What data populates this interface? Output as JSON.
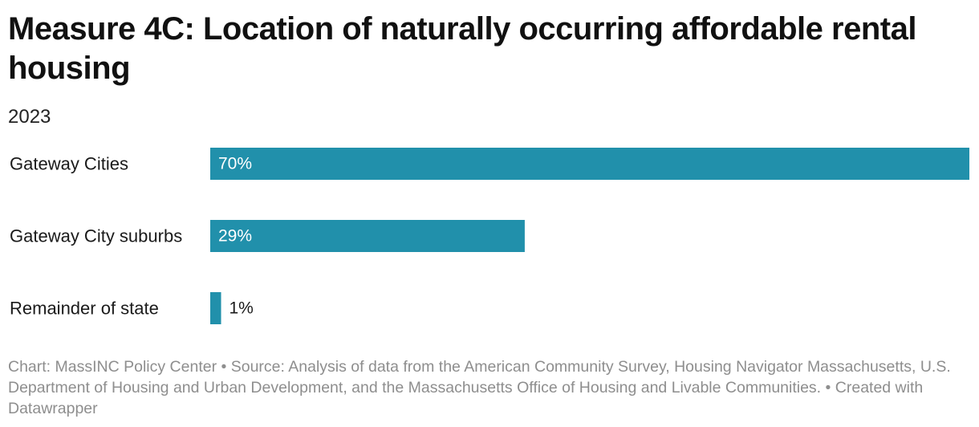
{
  "header": {
    "title": "Measure 4C: Location of naturally occurring affordable rental housing",
    "subtitle": "2023"
  },
  "footer": {
    "text": "Chart: MassINC Policy Center • Source: Analysis of data from the American Community Survey, Housing Navigator Massachusetts, U.S. Department of Housing and Urban Development, and the Massachusetts Office of Housing and Livable Communities. • Created with Datawrapper"
  },
  "colors": {
    "bar": "#2190ab",
    "label_inside": "#ffffff",
    "label_outside": "#1a1a1a"
  },
  "chart_data": {
    "type": "bar",
    "orientation": "horizontal",
    "title": "Measure 4C: Location of naturally occurring affordable rental housing",
    "subtitle": "2023",
    "categories": [
      "Gateway Cities",
      "Gateway City suburbs",
      "Remainder of state"
    ],
    "values": [
      70,
      29,
      1
    ],
    "value_labels": [
      "70%",
      "29%",
      "1%"
    ],
    "xlim": [
      0,
      70
    ],
    "unit": "%",
    "grid": false,
    "legend": "none"
  }
}
